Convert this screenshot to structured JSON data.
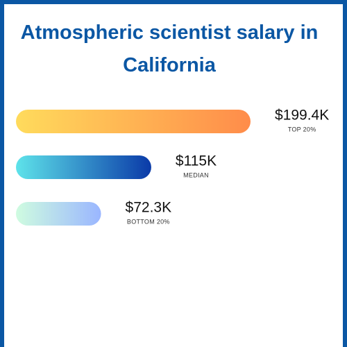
{
  "chart_data": {
    "type": "bar",
    "title": "Atmospheric scientist salary in California",
    "categories": [
      "TOP 20%",
      "MEDIAN",
      "BOTTOM 20%"
    ],
    "values": [
      199400,
      115000,
      72300
    ],
    "value_labels": [
      "$199.4K",
      "$115K",
      "$72.3K"
    ],
    "colors": [
      [
        "#ffdb5c",
        "#ff8c4a"
      ],
      [
        "#5ee3ea",
        "#0a3aa8"
      ],
      [
        "#cffce0",
        "#9ab6ff"
      ]
    ]
  }
}
